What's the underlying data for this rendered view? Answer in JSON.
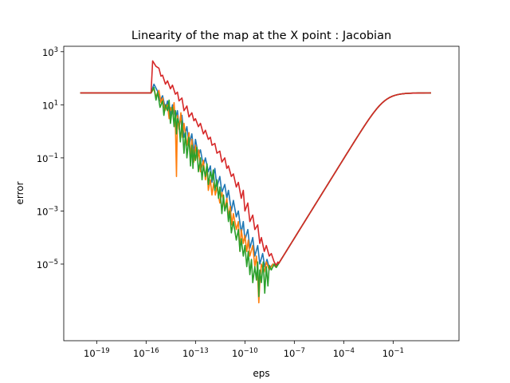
{
  "chart_data": {
    "type": "line",
    "title": "Linearity of the map at the X point : Jacobian",
    "xlabel": "eps",
    "ylabel": "error",
    "xscale": "log",
    "yscale": "log",
    "xlim": [
      1e-21,
      1000.0
    ],
    "ylim": [
      1.3e-08,
      1600.0
    ],
    "grid": false,
    "legend": "none",
    "x_ticks": [
      {
        "value": 1e-19,
        "base": "10",
        "exp": "−19"
      },
      {
        "value": 1e-16,
        "base": "10",
        "exp": "−16"
      },
      {
        "value": 1e-13,
        "base": "10",
        "exp": "−13"
      },
      {
        "value": 1e-10,
        "base": "10",
        "exp": "−10"
      },
      {
        "value": 1e-07,
        "base": "10",
        "exp": "−7"
      },
      {
        "value": 0.0001,
        "base": "10",
        "exp": "−4"
      },
      {
        "value": 0.1,
        "base": "10",
        "exp": "−1"
      }
    ],
    "y_ticks": [
      {
        "value": 1000.0,
        "base": "10",
        "exp": "3"
      },
      {
        "value": 10.0,
        "base": "10",
        "exp": "1"
      },
      {
        "value": 0.1,
        "base": "10",
        "exp": "−1"
      },
      {
        "value": 0.001,
        "base": "10",
        "exp": "−3"
      },
      {
        "value": 1e-05,
        "base": "10",
        "exp": "−5"
      }
    ],
    "series": [
      {
        "color": "#1f77b4",
        "points": [
          [
            1e-20,
            28
          ],
          [
            1e-18,
            28
          ],
          [
            1e-17,
            28
          ],
          [
            2e-16,
            28
          ],
          [
            3e-16,
            60
          ],
          [
            5e-16,
            32
          ],
          [
            7e-16,
            14
          ],
          [
            1e-15,
            22
          ],
          [
            1.5e-15,
            7
          ],
          [
            2e-15,
            14
          ],
          [
            3e-15,
            4
          ],
          [
            4e-15,
            10
          ],
          [
            6e-15,
            3
          ],
          [
            8e-15,
            6
          ],
          [
            1e-14,
            1.5
          ],
          [
            1.5e-14,
            4
          ],
          [
            2e-14,
            0.6
          ],
          [
            3e-14,
            1.5
          ],
          [
            4e-14,
            0.3
          ],
          [
            6e-14,
            0.8
          ],
          [
            8e-14,
            0.15
          ],
          [
            1e-13,
            0.5
          ],
          [
            1.5e-13,
            0.12
          ],
          [
            2e-13,
            0.2
          ],
          [
            3e-13,
            0.05
          ],
          [
            4e-13,
            0.1
          ],
          [
            6e-13,
            0.03
          ],
          [
            8e-13,
            0.05
          ],
          [
            1e-12,
            0.012
          ],
          [
            1.5e-12,
            0.04
          ],
          [
            2e-12,
            0.008
          ],
          [
            3e-12,
            0.02
          ],
          [
            4e-12,
            0.005
          ],
          [
            6e-12,
            0.01
          ],
          [
            8e-12,
            0.003
          ],
          [
            1e-11,
            0.006
          ],
          [
            1.5e-11,
            0.001
          ],
          [
            2e-11,
            0.0025
          ],
          [
            3e-11,
            0.0006
          ],
          [
            4e-11,
            0.001
          ],
          [
            6e-11,
            0.00015
          ],
          [
            8e-11,
            0.0004
          ],
          [
            1e-10,
            8e-05
          ],
          [
            1.5e-10,
            0.0002
          ],
          [
            2e-10,
            4e-05
          ],
          [
            3e-10,
            0.0001
          ],
          [
            4e-10,
            2e-05
          ],
          [
            6e-10,
            5e-05
          ],
          [
            8e-10,
            1e-05
          ],
          [
            1.2e-09,
            2.5e-05
          ],
          [
            1.6e-09,
            8e-06
          ],
          [
            2.2e-09,
            1.5e-05
          ],
          [
            3e-09,
            7e-06
          ],
          [
            5e-09,
            1e-05
          ],
          [
            8e-09,
            7.5e-06
          ]
        ]
      },
      {
        "color": "#ff7f0e",
        "points": [
          [
            1e-20,
            28
          ],
          [
            2e-16,
            28
          ],
          [
            3e-16,
            40
          ],
          [
            4e-16,
            20
          ],
          [
            6e-16,
            35
          ],
          [
            8e-16,
            12
          ],
          [
            1e-15,
            18
          ],
          [
            1.4e-15,
            6
          ],
          [
            2e-15,
            10
          ],
          [
            2.5e-15,
            3
          ],
          [
            3e-15,
            8
          ],
          [
            4e-15,
            5
          ],
          [
            5e-15,
            12
          ],
          [
            6e-15,
            2
          ],
          [
            7e-15,
            0.02
          ],
          [
            8e-15,
            4
          ],
          [
            1e-14,
            1.2
          ],
          [
            1.3e-14,
            5
          ],
          [
            1.6e-14,
            0.6
          ],
          [
            2e-14,
            2
          ],
          [
            3e-14,
            0.3
          ],
          [
            4e-14,
            0.9
          ],
          [
            5e-14,
            0.1
          ],
          [
            6e-14,
            0.5
          ],
          [
            8e-14,
            0.07
          ],
          [
            1e-13,
            0.3
          ],
          [
            1.3e-13,
            0.09
          ],
          [
            1.6e-13,
            0.2
          ],
          [
            2e-13,
            0.03
          ],
          [
            3e-13,
            0.08
          ],
          [
            4e-13,
            0.015
          ],
          [
            5e-13,
            0.04
          ],
          [
            6e-13,
            0.006
          ],
          [
            8e-13,
            0.015
          ],
          [
            1e-12,
            0.004
          ],
          [
            1.3e-12,
            0.012
          ],
          [
            1.6e-12,
            0.004
          ],
          [
            2e-12,
            0.008
          ],
          [
            3e-12,
            0.002
          ],
          [
            4e-12,
            0.005
          ],
          [
            6e-12,
            0.0012
          ],
          [
            8e-12,
            0.003
          ],
          [
            1e-11,
            0.0006
          ],
          [
            1.3e-11,
            0.0015
          ],
          [
            1.6e-11,
            0.0003
          ],
          [
            2e-11,
            0.0008
          ],
          [
            3e-11,
            0.0002
          ],
          [
            4e-11,
            0.0004
          ],
          [
            5e-11,
            3e-05
          ],
          [
            6e-11,
            0.0002
          ],
          [
            8e-11,
            6e-05
          ],
          [
            1e-10,
            0.00012
          ],
          [
            1.3e-10,
            3e-05
          ],
          [
            1.6e-10,
            8e-05
          ],
          [
            2e-10,
            2e-05
          ],
          [
            3e-10,
            5e-05
          ],
          [
            4e-10,
            8e-06
          ],
          [
            5e-10,
            2e-05
          ],
          [
            6e-10,
            3e-06
          ],
          [
            7e-10,
            3.5e-07
          ],
          [
            8e-10,
            2e-06
          ],
          [
            1e-09,
            1e-05
          ],
          [
            1.5e-09,
            5e-06
          ],
          [
            2e-09,
            1.2e-05
          ],
          [
            3e-09,
            6e-06
          ],
          [
            5e-09,
            1e-05
          ],
          [
            8e-09,
            7.5e-06
          ]
        ]
      },
      {
        "color": "#2ca02c",
        "points": [
          [
            1e-20,
            28
          ],
          [
            2e-16,
            28
          ],
          [
            3e-16,
            45
          ],
          [
            4e-16,
            15
          ],
          [
            5e-16,
            30
          ],
          [
            7e-16,
            8
          ],
          [
            1e-15,
            14
          ],
          [
            1.2e-15,
            4
          ],
          [
            1.5e-15,
            10
          ],
          [
            2e-15,
            6
          ],
          [
            2.5e-15,
            15
          ],
          [
            3e-15,
            2
          ],
          [
            4e-15,
            8
          ],
          [
            5e-15,
            1.5
          ],
          [
            6e-15,
            6
          ],
          [
            7e-15,
            0.8
          ],
          [
            8e-15,
            3
          ],
          [
            1e-14,
            2
          ],
          [
            1.2e-14,
            0.4
          ],
          [
            1.5e-14,
            2.5
          ],
          [
            2e-14,
            0.15
          ],
          [
            2.5e-14,
            0.9
          ],
          [
            3e-14,
            0.1
          ],
          [
            4e-14,
            0.6
          ],
          [
            5e-14,
            0.05
          ],
          [
            6e-14,
            0.3
          ],
          [
            7e-14,
            0.04
          ],
          [
            8e-14,
            0.2
          ],
          [
            1e-13,
            0.08
          ],
          [
            1.2e-13,
            0.25
          ],
          [
            1.5e-13,
            0.03
          ],
          [
            2e-13,
            0.1
          ],
          [
            2.5e-13,
            0.015
          ],
          [
            3e-13,
            0.05
          ],
          [
            4e-13,
            0.02
          ],
          [
            5e-13,
            0.06
          ],
          [
            6e-13,
            0.01
          ],
          [
            8e-13,
            0.03
          ],
          [
            1e-12,
            0.015
          ],
          [
            1.2e-12,
            0.035
          ],
          [
            1.5e-12,
            0.006
          ],
          [
            2e-12,
            0.015
          ],
          [
            2.5e-12,
            0.003
          ],
          [
            3e-12,
            0.008
          ],
          [
            4e-12,
            0.0008
          ],
          [
            5e-12,
            0.004
          ],
          [
            6e-12,
            0.001
          ],
          [
            8e-12,
            0.002
          ],
          [
            1e-11,
            0.0004
          ],
          [
            1.2e-11,
            0.001
          ],
          [
            1.5e-11,
            0.00015
          ],
          [
            2e-11,
            0.0004
          ],
          [
            3e-11,
            8e-05
          ],
          [
            4e-11,
            0.0002
          ],
          [
            5e-11,
            3e-05
          ],
          [
            6e-11,
            9e-05
          ],
          [
            8e-11,
            2e-05
          ],
          [
            1e-10,
            5e-05
          ],
          [
            1.3e-10,
            8e-06
          ],
          [
            1.6e-10,
            3e-05
          ],
          [
            2e-10,
            4e-06
          ],
          [
            2.5e-10,
            1.5e-05
          ],
          [
            3e-10,
            2e-06
          ],
          [
            4e-10,
            8e-06
          ],
          [
            5e-10,
            2.5e-06
          ],
          [
            6e-10,
            1.2e-05
          ],
          [
            7e-10,
            6e-07
          ],
          [
            8e-10,
            6e-06
          ],
          [
            1e-09,
            2e-06
          ],
          [
            1.3e-09,
            1.2e-05
          ],
          [
            1.6e-09,
            8e-07
          ],
          [
            2e-09,
            8e-06
          ],
          [
            2.5e-09,
            1.5e-06
          ],
          [
            3e-09,
            9e-06
          ],
          [
            4e-09,
            6e-06
          ],
          [
            6e-09,
            1e-05
          ],
          [
            8e-09,
            7.5e-06
          ]
        ]
      },
      {
        "color": "#d62728",
        "points": [
          [
            1e-20,
            28
          ],
          [
            1e-18,
            28
          ],
          [
            2e-16,
            28
          ],
          [
            2.5e-16,
            450
          ],
          [
            4e-16,
            280
          ],
          [
            6e-16,
            240
          ],
          [
            8e-16,
            120
          ],
          [
            1e-15,
            130
          ],
          [
            1.5e-15,
            60
          ],
          [
            2e-15,
            80
          ],
          [
            3e-15,
            40
          ],
          [
            4e-15,
            55
          ],
          [
            6e-15,
            25
          ],
          [
            8e-15,
            30
          ],
          [
            1e-14,
            14
          ],
          [
            1.5e-14,
            18
          ],
          [
            2e-14,
            6
          ],
          [
            3e-14,
            9
          ],
          [
            4e-14,
            3.5
          ],
          [
            6e-14,
            5
          ],
          [
            8e-14,
            2.5
          ],
          [
            1e-13,
            3
          ],
          [
            1.5e-13,
            1.5
          ],
          [
            2e-13,
            2
          ],
          [
            3e-13,
            0.8
          ],
          [
            4e-13,
            1.1
          ],
          [
            6e-13,
            0.5
          ],
          [
            8e-13,
            0.6
          ],
          [
            1e-12,
            0.3
          ],
          [
            1.5e-12,
            0.35
          ],
          [
            2e-12,
            0.15
          ],
          [
            3e-12,
            0.18
          ],
          [
            4e-12,
            0.07
          ],
          [
            6e-12,
            0.1
          ],
          [
            8e-12,
            0.04
          ],
          [
            1e-11,
            0.05
          ],
          [
            1.5e-11,
            0.02
          ],
          [
            2e-11,
            0.025
          ],
          [
            3e-11,
            0.008
          ],
          [
            4e-11,
            0.012
          ],
          [
            6e-11,
            0.003
          ],
          [
            8e-11,
            0.006
          ],
          [
            1e-10,
            0.001
          ],
          [
            1.5e-10,
            0.002
          ],
          [
            2e-10,
            0.0004
          ],
          [
            3e-10,
            0.0007
          ],
          [
            4e-10,
            0.0002
          ],
          [
            6e-10,
            0.0003
          ],
          [
            8e-10,
            6e-05
          ],
          [
            1e-09,
            0.0001
          ],
          [
            1.5e-09,
            3e-05
          ],
          [
            2e-09,
            5e-05
          ],
          [
            3e-09,
            2e-05
          ],
          [
            4e-09,
            2.5e-05
          ],
          [
            6e-09,
            1.2e-05
          ],
          [
            8e-09,
            9e-06
          ],
          [
            1e-08,
            1.2e-05
          ]
        ]
      }
    ],
    "shared_tail": {
      "from_eps": 8e-09,
      "from_error": 7.5e-06,
      "slope": 1,
      "plateau": 28,
      "to_eps": 20
    }
  }
}
